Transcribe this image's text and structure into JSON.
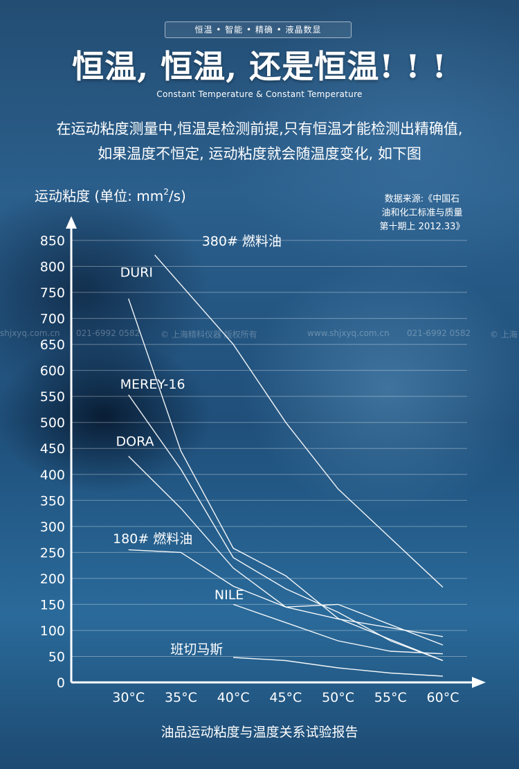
{
  "header": {
    "badge": "恒温 • 智能 • 精确 • 液晶数显",
    "title": "恒温, 恒温, 还是恒温! ! !",
    "subtitle_en": "Constant Temperature & Constant Temperature",
    "intro_line1": "在运动粘度测量中,恒温是检测前提,只有恒温才能检测出精确值,",
    "intro_line2": "如果温度不恒定, 运动粘度就会随温度变化, 如下图"
  },
  "source": {
    "line1": "数据来源:《中国石",
    "line2": "油和化工标准与质量",
    "line3": "第十期上 2012.33》"
  },
  "watermark": [
    "shjxyq.com.cn",
    "021-6992 0582",
    "© 上海精科仪器 版权所有",
    "www.shjxyq.com.cn",
    "021-6992 0582",
    "© 上海"
  ],
  "footer": {
    "caption": "油品运动粘度与温度关系试验报告"
  },
  "colors": {
    "line": "#ffffff",
    "grid": "#ffffff",
    "axis": "#ffffff"
  },
  "chart_data": {
    "type": "line",
    "ylabel": "运动粘度 (单位: mm²/s)",
    "ylabel_main": "运动粘度 (单位: mm",
    "ylabel_sup": "2",
    "ylabel_tail": "/s)",
    "xlabel": "",
    "categories": [
      "30°C",
      "35°C",
      "40°C",
      "45°C",
      "50°C",
      "55°C",
      "60°C"
    ],
    "x": [
      30,
      35,
      40,
      45,
      50,
      55,
      60
    ],
    "xlim": [
      25,
      60
    ],
    "ylim": [
      0,
      850
    ],
    "yticks": [
      0,
      50,
      100,
      150,
      200,
      250,
      300,
      350,
      400,
      450,
      500,
      550,
      600,
      650,
      700,
      750,
      800,
      850
    ],
    "grid": true,
    "series": [
      {
        "name": "380# 燃料油",
        "x": [
          32.5,
          40,
          45,
          50,
          60
        ],
        "values": [
          822,
          650,
          500,
          372,
          183
        ],
        "label_at": [
          37,
          840
        ]
      },
      {
        "name": "DURI",
        "x": [
          30,
          35,
          40,
          45,
          50,
          60
        ],
        "values": [
          738,
          445,
          258,
          205,
          123,
          42
        ],
        "label_at": [
          29.2,
          780
        ]
      },
      {
        "name": "MEREY-16",
        "x": [
          30,
          35,
          40,
          45,
          50,
          55,
          60
        ],
        "values": [
          553,
          410,
          240,
          180,
          135,
          80,
          42
        ],
        "label_at": [
          29.2,
          565
        ]
      },
      {
        "name": "DORA",
        "x": [
          30,
          35,
          40,
          45,
          50,
          60
        ],
        "values": [
          435,
          335,
          220,
          145,
          122,
          88
        ],
        "label_at": [
          28.8,
          455
        ]
      },
      {
        "name": "180# 燃料油",
        "x": [
          30,
          35,
          40,
          45,
          50,
          60
        ],
        "values": [
          255,
          250,
          185,
          145,
          150,
          72
        ],
        "label_at": [
          28.5,
          268
        ]
      },
      {
        "name": "NILE",
        "x": [
          40,
          45,
          50,
          55,
          60
        ],
        "values": [
          150,
          115,
          80,
          60,
          55
        ],
        "label_at": [
          38.2,
          160
        ]
      },
      {
        "name": "班切马斯",
        "x": [
          40,
          45,
          50,
          55,
          60
        ],
        "values": [
          48,
          42,
          28,
          18,
          12
        ],
        "label_at": [
          34,
          55
        ]
      }
    ]
  }
}
